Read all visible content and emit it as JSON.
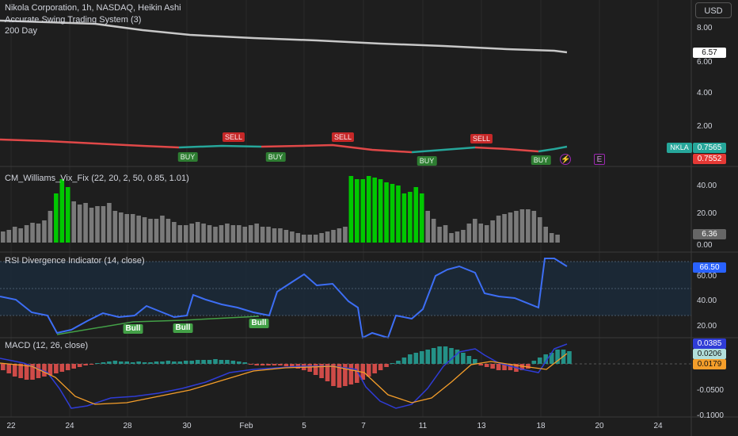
{
  "header": {
    "symbol_title": "Nikola Corporation, 1h, NASDAQ, Heikin Ashi",
    "indicator1": "Accurate Swing Trading System (3)",
    "indicator2": "200 Day",
    "currency_button": "USD"
  },
  "panes": {
    "price": {
      "y_ticks": [
        "8.00",
        "6.00",
        "4.00",
        "2.00"
      ],
      "ma_tag": "6.57",
      "sym_tag_name": "NKLA",
      "sym_tag_value": "0.7565",
      "red_tag": "0.7552"
    },
    "vix": {
      "title": "CM_Williams_Vix_Fix (22, 20, 2, 50, 0.85, 1.01)",
      "y_ticks": [
        "40.00",
        "20.00",
        "0.00"
      ],
      "tag": "6.36"
    },
    "rsi": {
      "title": "RSI Divergence Indicator (14, close)",
      "y_ticks": [
        "60.00",
        "40.00",
        "20.00"
      ],
      "tag": "66.50"
    },
    "macd": {
      "title": "MACD (12, 26, close)",
      "y_ticks": [
        "-0.0500",
        "-0.1000"
      ],
      "tag_macd": "0.0385",
      "tag_signal": "0.0206",
      "tag_hist": "0.0179"
    }
  },
  "signals": {
    "buy": "BUY",
    "sell": "SELL",
    "bull": "Bull"
  },
  "x_axis": [
    "22",
    "24",
    "28",
    "30",
    "Feb",
    "5",
    "7",
    "11",
    "13",
    "18",
    "20",
    "24"
  ],
  "colors": {
    "bg": "#1e1e1e",
    "grid": "#2a2a2a",
    "ma200": "#c8c8c8",
    "price_red": "#e04848",
    "price_green": "#26a69a",
    "vix_gray": "#7a7a7a",
    "vix_green": "#00c800",
    "rsi_line": "#3d6ef5",
    "macd_line": "#2f3cd6",
    "signal_line": "#f59e2a",
    "macd_pos": "#26a69a",
    "macd_neg": "#ef5350"
  }
}
